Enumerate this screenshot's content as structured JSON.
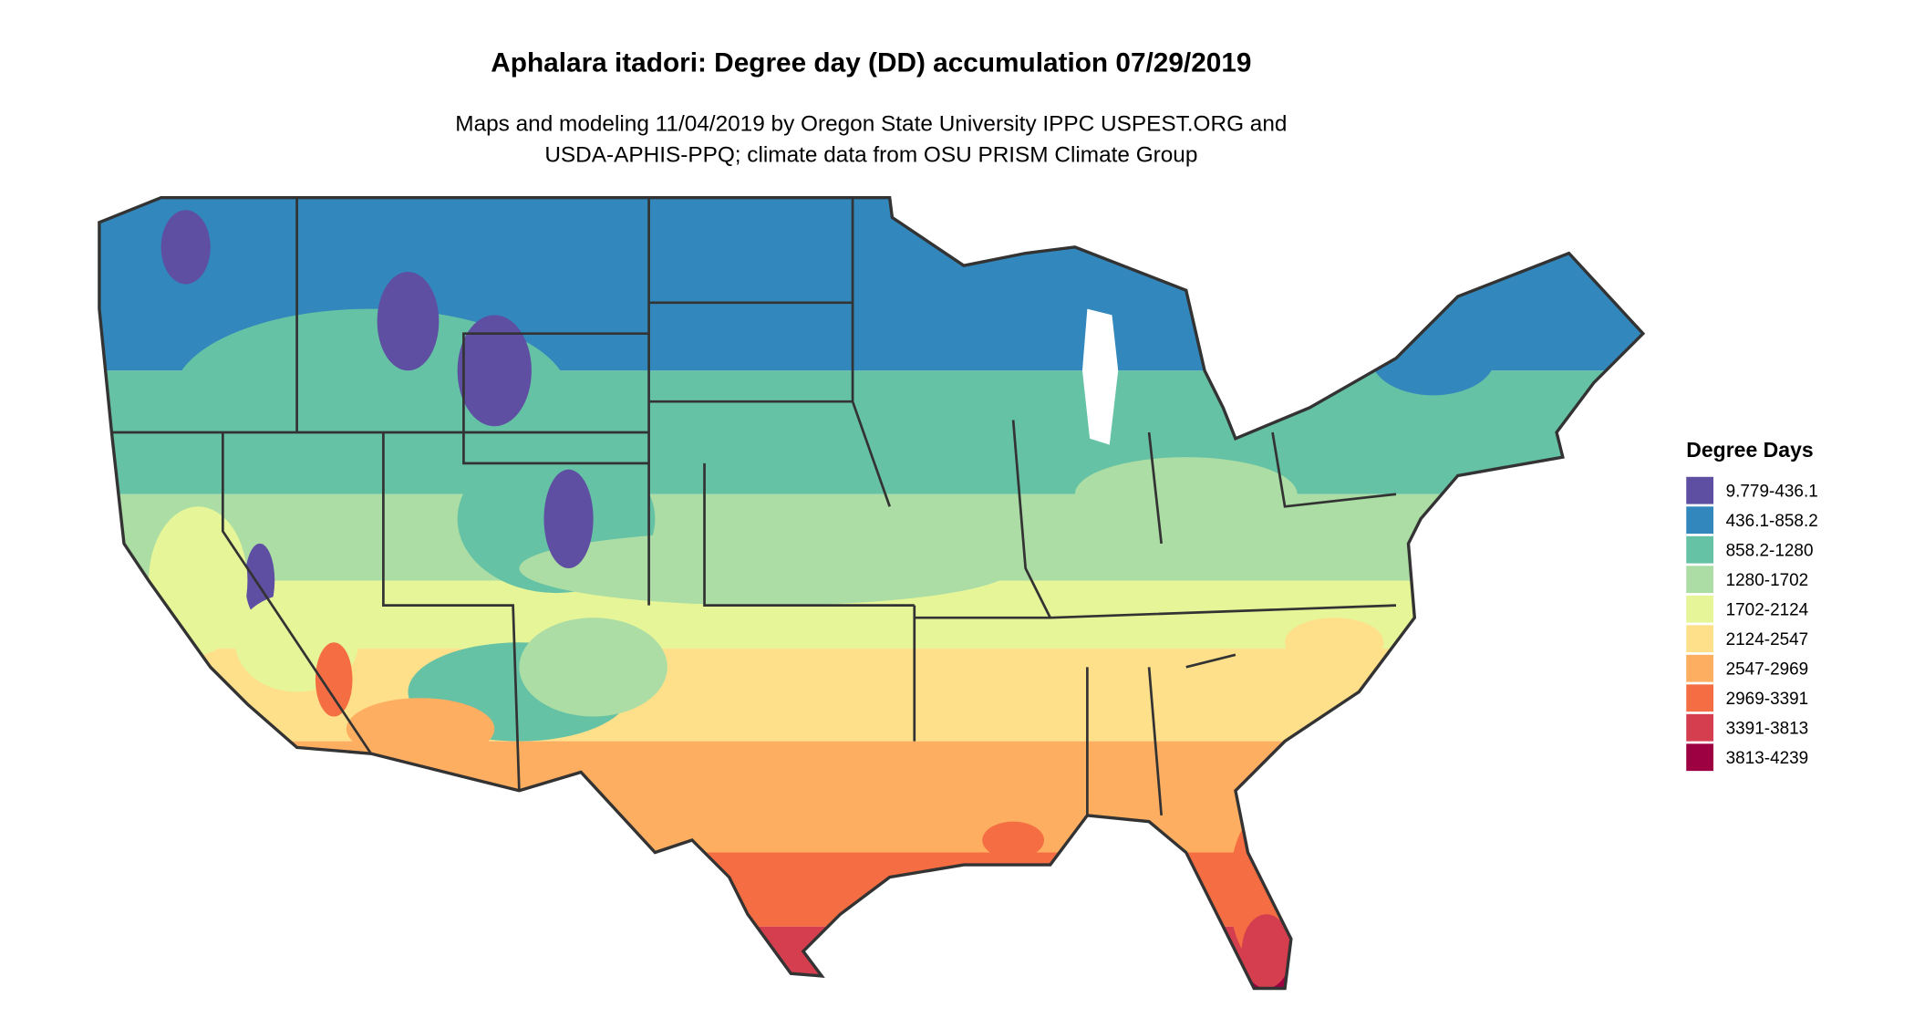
{
  "title": "Aphalara itadori: Degree day (DD) accumulation 07/29/2019",
  "subtitle": [
    "Maps and modeling 11/04/2019 by Oregon State University IPPC USPEST.ORG and",
    "USDA-APHIS-PPQ; climate data from OSU PRISM Climate Group"
  ],
  "legend": {
    "title": "Degree Days",
    "items": [
      {
        "label": "9.779-436.1",
        "color": "#5e4fa2"
      },
      {
        "label": "436.1-858.2",
        "color": "#3288bd"
      },
      {
        "label": "858.2-1280",
        "color": "#66c2a5"
      },
      {
        "label": "1280-1702",
        "color": "#abdda4"
      },
      {
        "label": "1702-2124",
        "color": "#e6f598"
      },
      {
        "label": "2124-2547",
        "color": "#fee08b"
      },
      {
        "label": "2547-2969",
        "color": "#fdae61"
      },
      {
        "label": "2969-3391",
        "color": "#f46d43"
      },
      {
        "label": "3391-3813",
        "color": "#d53e4f"
      },
      {
        "label": "3813-4239",
        "color": "#9e0142"
      }
    ]
  }
}
